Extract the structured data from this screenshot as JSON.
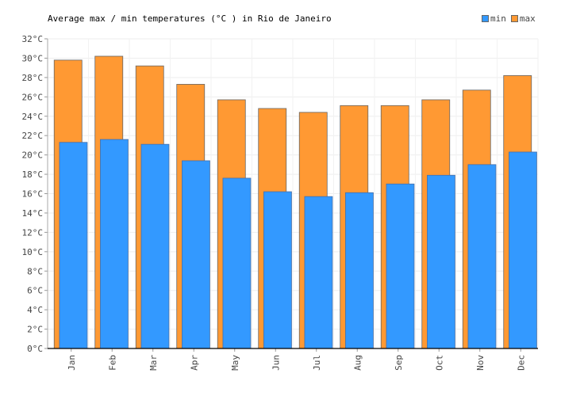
{
  "chart_data": {
    "type": "bar",
    "title": "Average max / min temperatures (°C ) in Rio de Janeiro",
    "categories": [
      "Jan",
      "Feb",
      "Mar",
      "Apr",
      "May",
      "Jun",
      "Jul",
      "Aug",
      "Sep",
      "Oct",
      "Nov",
      "Dec"
    ],
    "series": [
      {
        "name": "min",
        "color": "#3399ff",
        "values": [
          21.3,
          21.6,
          21.1,
          19.4,
          17.6,
          16.2,
          15.7,
          16.1,
          17.0,
          17.9,
          19.0,
          20.3
        ]
      },
      {
        "name": "max",
        "color": "#ff9933",
        "values": [
          29.8,
          30.2,
          29.2,
          27.3,
          25.7,
          24.8,
          24.4,
          25.1,
          25.1,
          25.7,
          26.7,
          28.2
        ]
      }
    ],
    "ylim": [
      0,
      32
    ],
    "yticks": [
      0,
      2,
      4,
      6,
      8,
      10,
      12,
      14,
      16,
      18,
      20,
      22,
      24,
      26,
      28,
      30,
      32
    ],
    "ytick_suffix": "°C",
    "grid": true,
    "legend_position": "top-right"
  }
}
